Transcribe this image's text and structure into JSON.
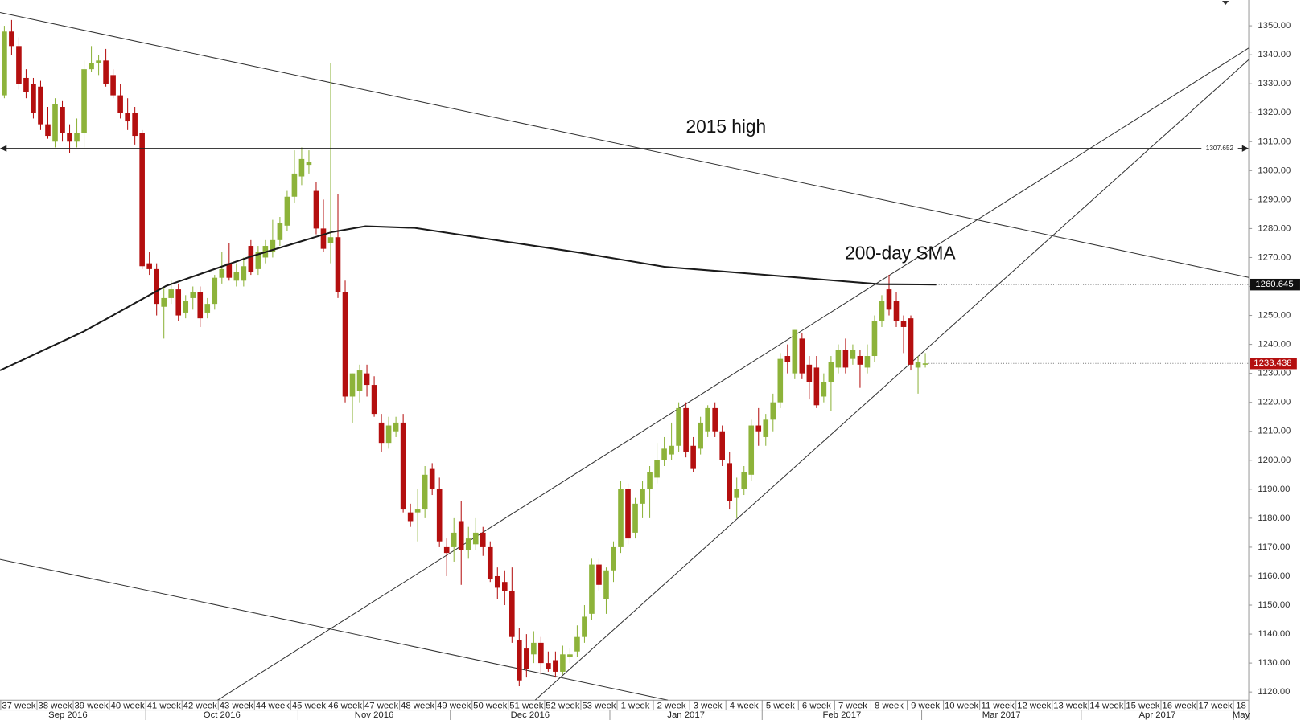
{
  "chart_data": {
    "type": "candlestick",
    "open": [
      1326,
      1348,
      1343,
      1332,
      1330,
      1329,
      1316,
      1310,
      1322,
      1313,
      1310,
      1313,
      1335,
      1337,
      1338,
      1333,
      1326,
      1320,
      1320,
      1313,
      1268,
      1266,
      1253,
      1256,
      1259,
      1251,
      1256,
      1258,
      1251,
      1254,
      1263,
      1268,
      1262,
      1262,
      1274,
      1266,
      1270,
      1272,
      1276,
      1281,
      1291,
      1298,
      1302,
      1293,
      1280,
      1275,
      1277,
      1258,
      1222,
      1224,
      1230,
      1226,
      1213,
      1206,
      1210,
      1213,
      1182,
      1182,
      1183,
      1197,
      1190,
      1170,
      1170,
      1179,
      1169,
      1171,
      1175,
      1170,
      1160,
      1158,
      1155,
      1138,
      1135,
      1133,
      1137,
      1130,
      1131,
      1127,
      1132,
      1134,
      1139,
      1147,
      1164,
      1152,
      1162,
      1170,
      1190,
      1175,
      1185,
      1190,
      1194,
      1200,
      1202,
      1205,
      1218,
      1205,
      1204,
      1210,
      1218,
      1210,
      1199,
      1187,
      1190,
      1195,
      1212,
      1208,
      1214,
      1220,
      1236,
      1230,
      1242,
      1233,
      1232,
      1222,
      1227,
      1232,
      1238,
      1235,
      1236,
      1232,
      1236,
      1248,
      1259,
      1255,
      1248,
      1249,
      1232,
      1233
    ],
    "high": [
      1350,
      1352,
      1346,
      1335,
      1332,
      1331,
      1322,
      1325,
      1324,
      1316,
      1318,
      1338,
      1343,
      1340,
      1342,
      1335,
      1330,
      1325,
      1322,
      1314,
      1272,
      1268,
      1260,
      1262,
      1261,
      1257,
      1260,
      1260,
      1256,
      1264,
      1272,
      1275,
      1268,
      1270,
      1276,
      1274,
      1276,
      1283,
      1284,
      1293,
      1307,
      1308,
      1307,
      1296,
      1290,
      1337,
      1292,
      1262,
      1230,
      1233,
      1233,
      1229,
      1216,
      1215,
      1215,
      1216,
      1185,
      1190,
      1198,
      1199,
      1194,
      1173,
      1180,
      1186,
      1177,
      1180,
      1177,
      1172,
      1163,
      1162,
      1163,
      1142,
      1140,
      1141,
      1139,
      1134,
      1134,
      1136,
      1135,
      1143,
      1150,
      1166,
      1166,
      1163,
      1172,
      1193,
      1192,
      1187,
      1193,
      1198,
      1206,
      1208,
      1213,
      1220,
      1220,
      1208,
      1215,
      1219,
      1220,
      1212,
      1203,
      1194,
      1198,
      1214,
      1218,
      1216,
      1223,
      1237,
      1240,
      1245,
      1244,
      1236,
      1236,
      1230,
      1236,
      1240,
      1242,
      1240,
      1238,
      1240,
      1250,
      1257,
      1264,
      1258,
      1250,
      1250,
      1236,
      1237
    ],
    "low": [
      1325,
      1340,
      1328,
      1325,
      1318,
      1314,
      1311,
      1308,
      1310,
      1306,
      1308,
      1308,
      1334,
      1333,
      1329,
      1325,
      1318,
      1314,
      1309,
      1266,
      1264,
      1250,
      1242,
      1254,
      1248,
      1249,
      1252,
      1246,
      1249,
      1252,
      1261,
      1262,
      1260,
      1260,
      1264,
      1264,
      1268,
      1270,
      1274,
      1279,
      1289,
      1295,
      1299,
      1278,
      1272,
      1268,
      1256,
      1220,
      1213,
      1220,
      1222,
      1215,
      1203,
      1204,
      1208,
      1182,
      1177,
      1172,
      1180,
      1188,
      1170,
      1160,
      1165,
      1157,
      1166,
      1169,
      1167,
      1158,
      1152,
      1150,
      1137,
      1122,
      1125,
      1130,
      1126,
      1127,
      1125,
      1126,
      1130,
      1132,
      1137,
      1145,
      1155,
      1147,
      1158,
      1168,
      1171,
      1173,
      1180,
      1180,
      1192,
      1198,
      1200,
      1203,
      1201,
      1196,
      1202,
      1208,
      1208,
      1198,
      1183,
      1180,
      1188,
      1193,
      1205,
      1205,
      1210,
      1218,
      1230,
      1228,
      1228,
      1221,
      1218,
      1220,
      1217,
      1230,
      1230,
      1233,
      1225,
      1230,
      1234,
      1246,
      1250,
      1246,
      1237,
      1231,
      1223,
      1232
    ],
    "close": [
      1348,
      1343,
      1330,
      1327,
      1320,
      1316,
      1312,
      1323,
      1313,
      1310,
      1313,
      1335,
      1337,
      1338,
      1330,
      1326,
      1320,
      1317,
      1312,
      1267,
      1266,
      1254,
      1256,
      1259,
      1250,
      1255,
      1258,
      1249,
      1254,
      1263,
      1266,
      1263,
      1265,
      1267,
      1265,
      1272,
      1274,
      1276,
      1282,
      1291,
      1299,
      1304,
      1303,
      1280,
      1273,
      1277,
      1258,
      1222,
      1230,
      1231,
      1226,
      1216,
      1206,
      1212,
      1213,
      1183,
      1179,
      1183,
      1195,
      1190,
      1172,
      1168,
      1175,
      1169,
      1173,
      1175,
      1170,
      1159,
      1156,
      1155,
      1139,
      1124,
      1128,
      1137,
      1130,
      1128,
      1127,
      1133,
      1133,
      1139,
      1146,
      1164,
      1157,
      1162,
      1170,
      1190,
      1173,
      1185,
      1190,
      1196,
      1200,
      1204,
      1205,
      1218,
      1203,
      1197,
      1213,
      1218,
      1210,
      1200,
      1186,
      1190,
      1196,
      1212,
      1210,
      1214,
      1220,
      1235,
      1234,
      1245,
      1230,
      1227,
      1219,
      1227,
      1234,
      1238,
      1232,
      1238,
      1233,
      1236,
      1248,
      1255,
      1252,
      1248,
      1246,
      1233,
      1234,
      1233.438
    ],
    "sma": {
      "x": [
        -0.6,
        10.9,
        22.3,
        33.8,
        45.2,
        49.8,
        56.6,
        68.1,
        79.5,
        91,
        102.4,
        113.8,
        120.7,
        128.5
      ],
      "y": [
        1231,
        1244.4,
        1260.2,
        1270.2,
        1278.8,
        1280.8,
        1280.2,
        1275.9,
        1271.6,
        1266.8,
        1264.5,
        1262.2,
        1260.8,
        1260.645
      ]
    },
    "trendlines": [
      {
        "x": [
          -0.6,
          171.6
        ],
        "y": [
          1354.6,
          1263.1
        ]
      },
      {
        "x": [
          -0.6,
          91.5
        ],
        "y": [
          1165.8,
          1117.2
        ]
      },
      {
        "x": [
          29.4,
          171.6
        ],
        "y": [
          1117.2,
          1342.3
        ]
      },
      {
        "x": [
          73.2,
          171.6
        ],
        "y": [
          1117.2,
          1338.3
        ]
      }
    ],
    "hline": 1307.652,
    "annotations": [
      "2015 high",
      "200-day SMA"
    ],
    "xlim": [
      -0.6,
      171.6
    ],
    "ylim": [
      1117.2,
      1358.9
    ],
    "yticks": [
      {
        "value": 1120,
        "label": "1120.00"
      },
      {
        "value": 1130,
        "label": "1130.00"
      },
      {
        "value": 1140,
        "label": "1140.00"
      },
      {
        "value": 1150,
        "label": "1150.00"
      },
      {
        "value": 1160,
        "label": "1160.00"
      },
      {
        "value": 1170,
        "label": "1170.00"
      },
      {
        "value": 1180,
        "label": "1180.00"
      },
      {
        "value": 1190,
        "label": "1190.00"
      },
      {
        "value": 1200,
        "label": "1200.00"
      },
      {
        "value": 1210,
        "label": "1210.00"
      },
      {
        "value": 1220,
        "label": "1220.00"
      },
      {
        "value": 1230,
        "label": "1230.00"
      },
      {
        "value": 1240,
        "label": "1240.00"
      },
      {
        "value": 1250,
        "label": "1250.00"
      },
      {
        "value": 1260,
        "label": "1260.00"
      },
      {
        "value": 1270,
        "label": "1270.00"
      },
      {
        "value": 1280,
        "label": "1280.00"
      },
      {
        "value": 1290,
        "label": "1290.00"
      },
      {
        "value": 1300,
        "label": "1300.00"
      },
      {
        "value": 1310,
        "label": "1310.00"
      },
      {
        "value": 1320,
        "label": "1320.00"
      },
      {
        "value": 1330,
        "label": "1330.00"
      },
      {
        "value": 1340,
        "label": "1340.00"
      },
      {
        "value": 1350,
        "label": "1350.00"
      }
    ],
    "xticks": [
      {
        "value": -0.5,
        "label": "37 week"
      },
      {
        "value": 4.5,
        "label": "38 week"
      },
      {
        "value": 9.5,
        "label": "39 week"
      },
      {
        "value": 14.5,
        "label": "40 week"
      },
      {
        "value": 19.5,
        "label": "41 week"
      },
      {
        "value": 24.5,
        "label": "42 week"
      },
      {
        "value": 29.5,
        "label": "43 week"
      },
      {
        "value": 34.5,
        "label": "44 week"
      },
      {
        "value": 39.5,
        "label": "45 week"
      },
      {
        "value": 44.5,
        "label": "46 week"
      },
      {
        "value": 49.5,
        "label": "47 week"
      },
      {
        "value": 54.5,
        "label": "48 week"
      },
      {
        "value": 59.5,
        "label": "49 week"
      },
      {
        "value": 64.5,
        "label": "50 week"
      },
      {
        "value": 69.5,
        "label": "51 week"
      },
      {
        "value": 74.5,
        "label": "52 week"
      },
      {
        "value": 79.5,
        "label": "53 week"
      },
      {
        "value": 84.5,
        "label": "1 week"
      },
      {
        "value": 89.5,
        "label": "2 week"
      },
      {
        "value": 94.5,
        "label": "3 week"
      },
      {
        "value": 99.5,
        "label": "4 week"
      },
      {
        "value": 104.5,
        "label": "5 week"
      },
      {
        "value": 109.5,
        "label": "6 week"
      },
      {
        "value": 114.5,
        "label": "7 week"
      },
      {
        "value": 119.5,
        "label": "8 week"
      },
      {
        "value": 124.5,
        "label": "9 week"
      },
      {
        "value": 129.5,
        "label": "10 week"
      },
      {
        "value": 134.5,
        "label": "11 week"
      },
      {
        "value": 139.5,
        "label": "12 week"
      },
      {
        "value": 144.5,
        "label": "13 week"
      },
      {
        "value": 149.5,
        "label": "14 week"
      },
      {
        "value": 154.5,
        "label": "15 week"
      },
      {
        "value": 159.5,
        "label": "16 week"
      },
      {
        "value": 164.5,
        "label": "17 week"
      },
      {
        "value": 169.5,
        "label": "18"
      }
    ],
    "month_ticks": [
      {
        "value": -2,
        "label": "Sep 2016"
      },
      {
        "value": 19.5,
        "label": "Oct 2016"
      },
      {
        "value": 40.5,
        "label": "Nov 2016"
      },
      {
        "value": 61.5,
        "label": "Dec 2016"
      },
      {
        "value": 83.5,
        "label": "Jan 2017"
      },
      {
        "value": 104.5,
        "label": "Feb 2017"
      },
      {
        "value": 126.5,
        "label": "Mar 2017"
      },
      {
        "value": 148.5,
        "label": "Apr 2017"
      },
      {
        "value": 169.5,
        "label": "May"
      }
    ],
    "up_color": "#8db33a",
    "down_color": "#b40f0f",
    "line_color": "#1a1a1a"
  }
}
